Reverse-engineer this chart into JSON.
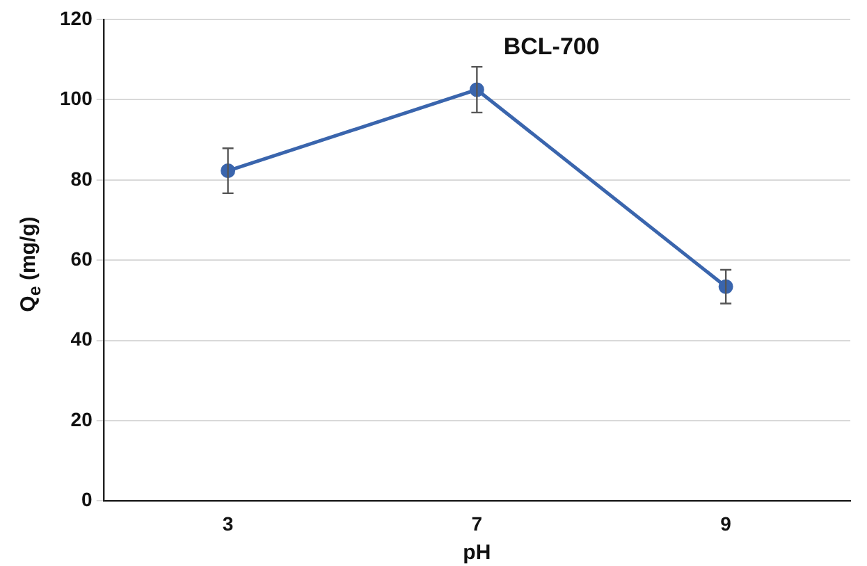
{
  "chart_data": {
    "type": "line",
    "title": "BCL-700",
    "xlabel": "pH",
    "ylabel": "Q$_{e}$ (mg/g)",
    "categories": [
      "3",
      "7",
      "9"
    ],
    "series": [
      {
        "color": "#3a65ad",
        "values": [
          82.3,
          102.5,
          53.4
        ],
        "errors": [
          5.6,
          5.7,
          4.2
        ]
      }
    ],
    "ylim": [
      0,
      120
    ],
    "yticks": [
      0,
      20,
      40,
      60,
      80,
      100,
      120
    ],
    "grid": "y",
    "legend": false,
    "marker": "circle",
    "line_style": "solid"
  }
}
